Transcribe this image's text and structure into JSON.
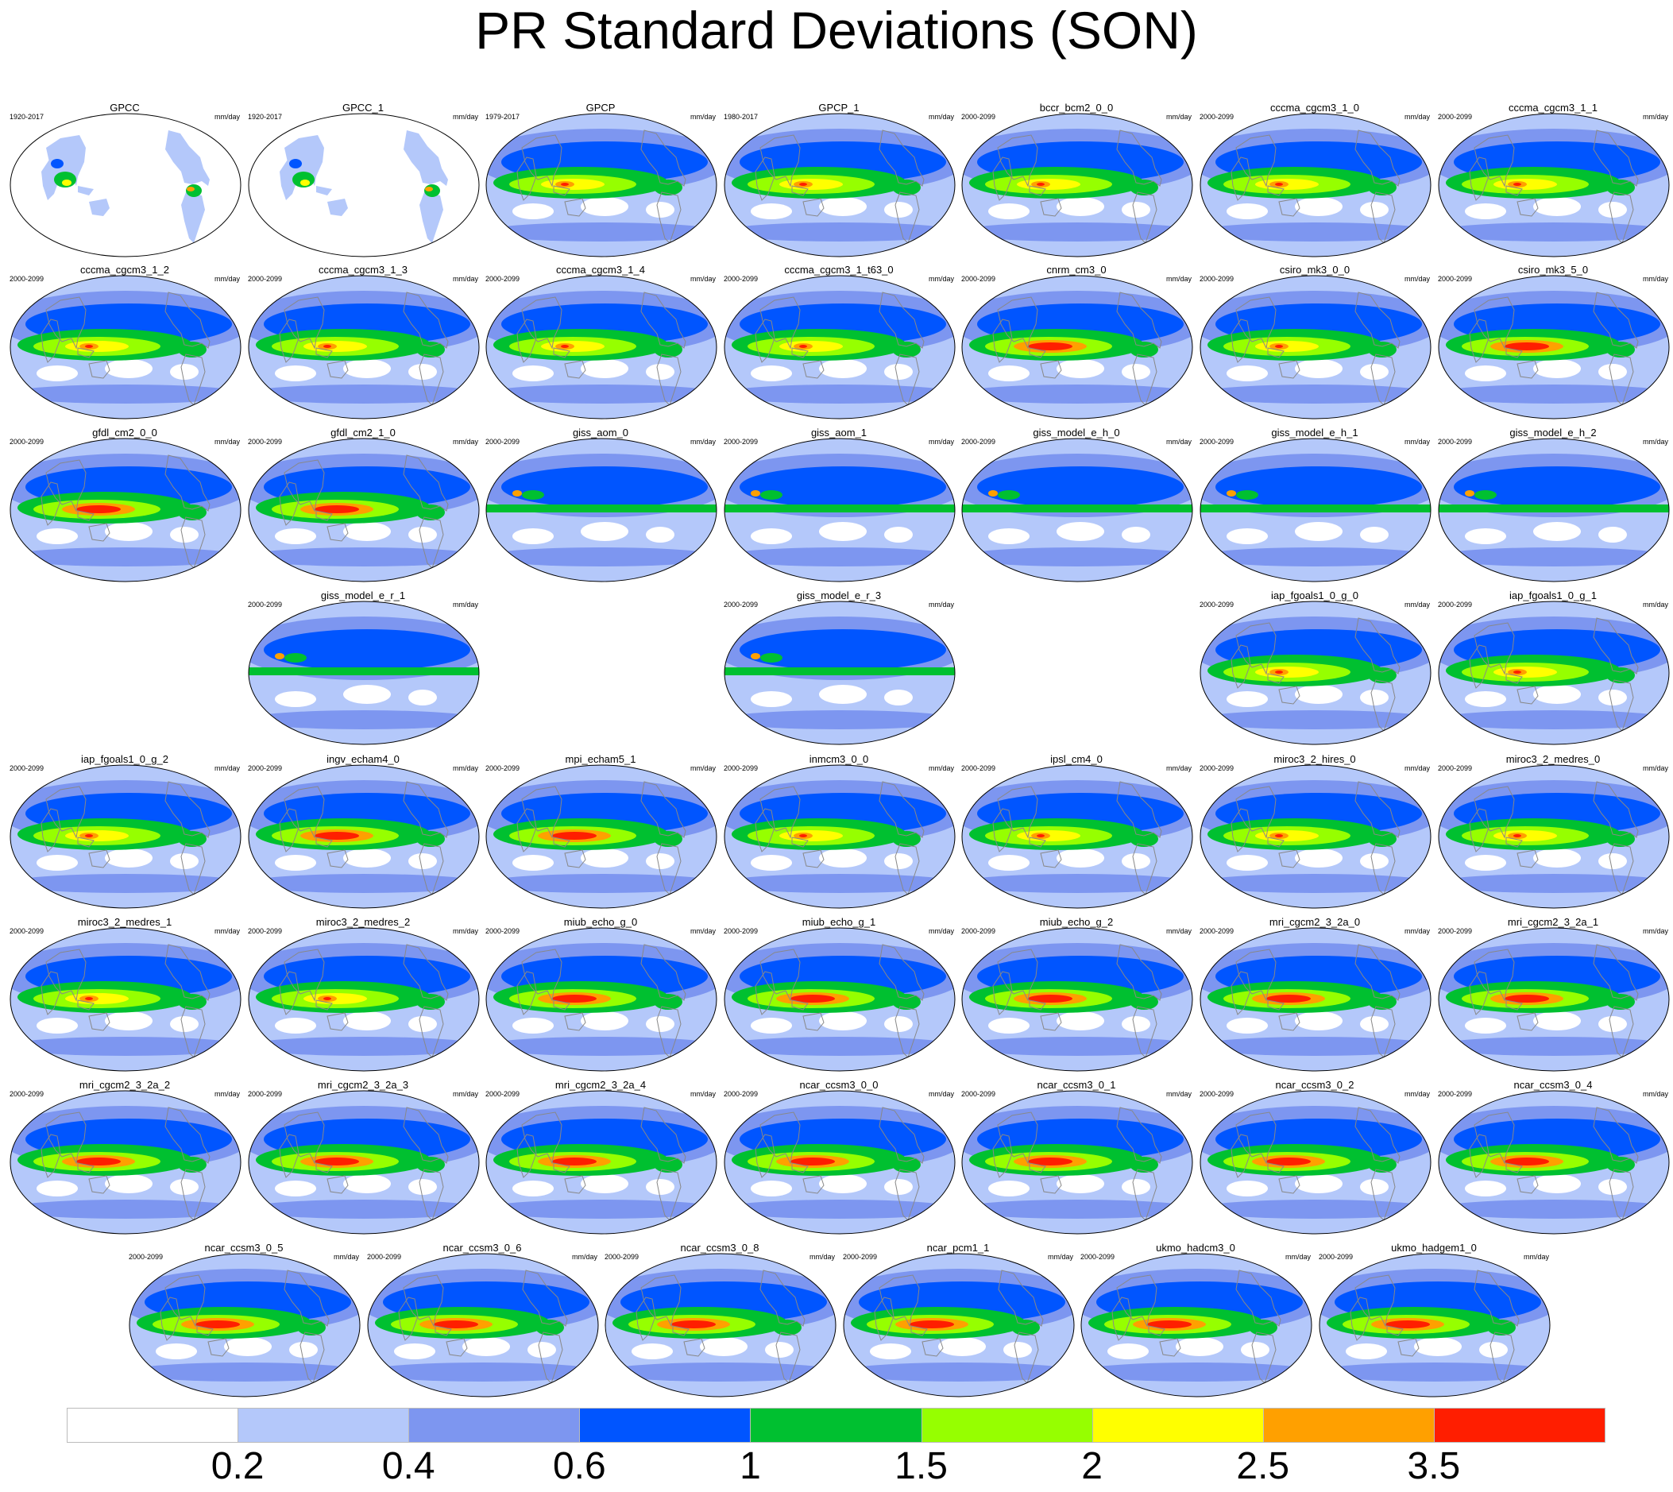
{
  "chart_data": {
    "type": "heatmap",
    "title": "PR Standard Deviations (SON)",
    "units": "mm/day",
    "projection": "global map",
    "colorbar": {
      "labels": [
        "0.2",
        "0.4",
        "0.6",
        "1",
        "1.5",
        "2",
        "2.5",
        "3.5"
      ],
      "colors": [
        "#ffffff",
        "#b4c8fa",
        "#7d96f0",
        "#0055ff",
        "#00c030",
        "#96ff00",
        "#ffff00",
        "#ffa000",
        "#ff1e00"
      ]
    },
    "panels": [
      {
        "name": "GPCC",
        "years": "1920-2017",
        "style": 0
      },
      {
        "name": "GPCC_1",
        "years": "1920-2017",
        "style": 0
      },
      {
        "name": "GPCP",
        "years": "1979-2017",
        "style": 2
      },
      {
        "name": "GPCP_1",
        "years": "1980-2017",
        "style": 2
      },
      {
        "name": "bccr_bcm2_0_0",
        "years": "2000-2099",
        "style": 2
      },
      {
        "name": "cccma_cgcm3_1_0",
        "years": "2000-2099",
        "style": 2
      },
      {
        "name": "cccma_cgcm3_1_1",
        "years": "2000-2099",
        "style": 2
      },
      {
        "name": "cccma_cgcm3_1_2",
        "years": "2000-2099",
        "style": 2
      },
      {
        "name": "cccma_cgcm3_1_3",
        "years": "2000-2099",
        "style": 2
      },
      {
        "name": "cccma_cgcm3_1_4",
        "years": "2000-2099",
        "style": 2
      },
      {
        "name": "cccma_cgcm3_1_t63_0",
        "years": "2000-2099",
        "style": 2
      },
      {
        "name": "cnrm_cm3_0",
        "years": "2000-2099",
        "style": 3
      },
      {
        "name": "csiro_mk3_0_0",
        "years": "2000-2099",
        "style": 2
      },
      {
        "name": "csiro_mk3_5_0",
        "years": "2000-2099",
        "style": 3
      },
      {
        "name": "gfdl_cm2_0_0",
        "years": "2000-2099",
        "style": 3
      },
      {
        "name": "gfdl_cm2_1_0",
        "years": "2000-2099",
        "style": 3
      },
      {
        "name": "giss_aom_0",
        "years": "2000-2099",
        "style": 1
      },
      {
        "name": "giss_aom_1",
        "years": "2000-2099",
        "style": 1
      },
      {
        "name": "giss_model_e_h_0",
        "years": "2000-2099",
        "style": 1
      },
      {
        "name": "giss_model_e_h_1",
        "years": "2000-2099",
        "style": 1
      },
      {
        "name": "giss_model_e_h_2",
        "years": "2000-2099",
        "style": 1
      },
      {
        "name": "giss_model_e_r_1",
        "years": "2000-2099",
        "style": 1
      },
      {
        "name": "giss_model_e_r_3",
        "years": "2000-2099",
        "style": 1
      },
      {
        "name": "iap_fgoals1_0_g_0",
        "years": "2000-2099",
        "style": 2
      },
      {
        "name": "iap_fgoals1_0_g_1",
        "years": "2000-2099",
        "style": 2
      },
      {
        "name": "iap_fgoals1_0_g_2",
        "years": "2000-2099",
        "style": 2
      },
      {
        "name": "ingv_echam4_0",
        "years": "2000-2099",
        "style": 3
      },
      {
        "name": "mpi_echam5_1",
        "years": "2000-2099",
        "style": 3
      },
      {
        "name": "inmcm3_0_0",
        "years": "2000-2099",
        "style": 2
      },
      {
        "name": "ipsl_cm4_0",
        "years": "2000-2099",
        "style": 2
      },
      {
        "name": "miroc3_2_hires_0",
        "years": "2000-2099",
        "style": 2
      },
      {
        "name": "miroc3_2_medres_0",
        "years": "2000-2099",
        "style": 2
      },
      {
        "name": "miroc3_2_medres_1",
        "years": "2000-2099",
        "style": 2
      },
      {
        "name": "miroc3_2_medres_2",
        "years": "2000-2099",
        "style": 2
      },
      {
        "name": "miub_echo_g_0",
        "years": "2000-2099",
        "style": 3
      },
      {
        "name": "miub_echo_g_1",
        "years": "2000-2099",
        "style": 3
      },
      {
        "name": "miub_echo_g_2",
        "years": "2000-2099",
        "style": 3
      },
      {
        "name": "mri_cgcm2_3_2a_0",
        "years": "2000-2099",
        "style": 3
      },
      {
        "name": "mri_cgcm2_3_2a_1",
        "years": "2000-2099",
        "style": 3
      },
      {
        "name": "mri_cgcm2_3_2a_2",
        "years": "2000-2099",
        "style": 3
      },
      {
        "name": "mri_cgcm2_3_2a_3",
        "years": "2000-2099",
        "style": 3
      },
      {
        "name": "mri_cgcm2_3_2a_4",
        "years": "2000-2099",
        "style": 3
      },
      {
        "name": "ncar_ccsm3_0_0",
        "years": "2000-2099",
        "style": 3
      },
      {
        "name": "ncar_ccsm3_0_1",
        "years": "2000-2099",
        "style": 3
      },
      {
        "name": "ncar_ccsm3_0_2",
        "years": "2000-2099",
        "style": 3
      },
      {
        "name": "ncar_ccsm3_0_4",
        "years": "2000-2099",
        "style": 3
      },
      {
        "name": "ncar_ccsm3_0_5",
        "years": "2000-2099",
        "style": 3
      },
      {
        "name": "ncar_ccsm3_0_6",
        "years": "2000-2099",
        "style": 3
      },
      {
        "name": "ncar_ccsm3_0_8",
        "years": "2000-2099",
        "style": 3
      },
      {
        "name": "ncar_pcm1_1",
        "years": "2000-2099",
        "style": 3
      },
      {
        "name": "ukmo_hadcm3_0",
        "years": "2000-2099",
        "style": 3
      },
      {
        "name": "ukmo_hadgem1_0",
        "years": "2000-2099",
        "style": 3
      }
    ]
  }
}
